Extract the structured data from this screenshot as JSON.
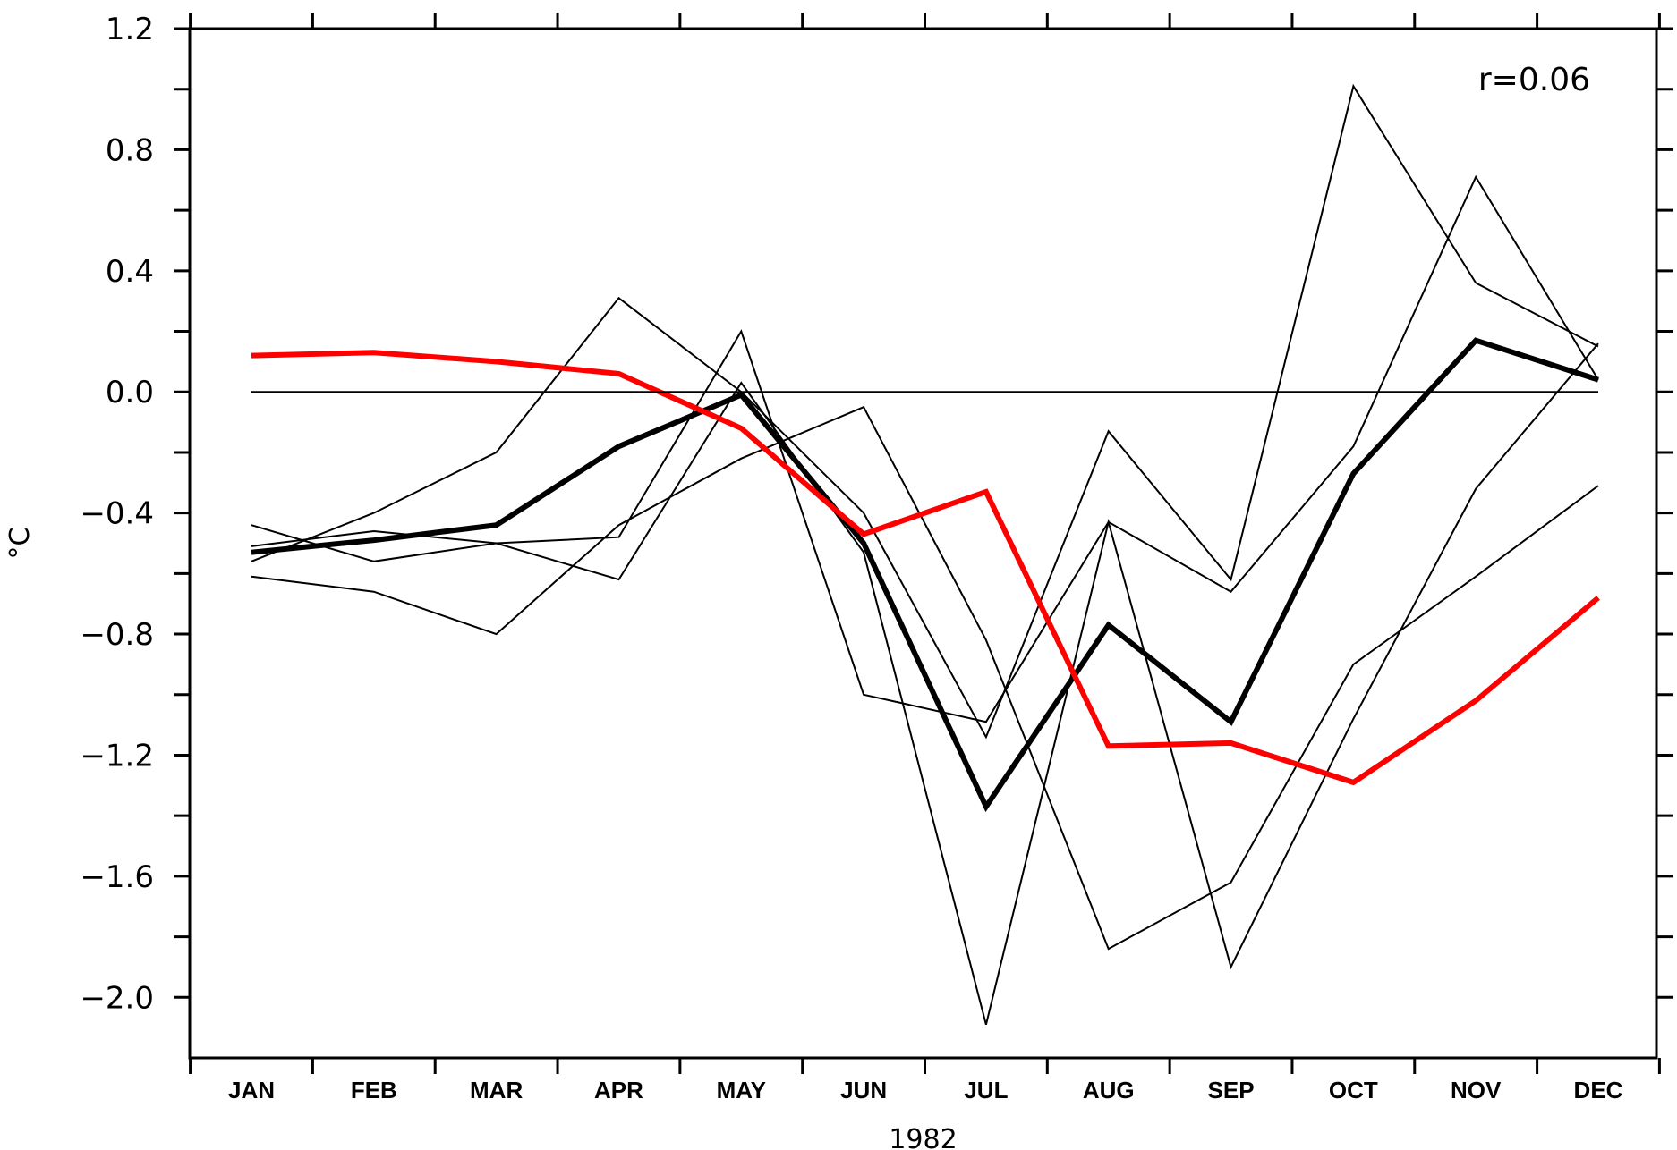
{
  "chart_data": {
    "type": "line",
    "xlabel": "1982",
    "ylabel": "°C",
    "annotation": "r=0.06",
    "ylim": [
      -2.2,
      1.2
    ],
    "y_ticks": [
      1.2,
      0.8,
      0.4,
      0.0,
      -0.4,
      -0.8,
      -1.2,
      -1.6,
      -2.0
    ],
    "y_tick_labels": [
      "1.2",
      "0.8",
      "0.4",
      "0.0",
      "−0.4",
      "−0.8",
      "−1.2",
      "−1.6",
      "−2.0"
    ],
    "categories": [
      "JAN",
      "FEB",
      "MAR",
      "APR",
      "MAY",
      "JUN",
      "JUL",
      "AUG",
      "SEP",
      "OCT",
      "NOV",
      "DEC"
    ],
    "zero_line": true,
    "grid": false,
    "series": [
      {
        "color": "#000000",
        "weight": "thin",
        "values": [
          -0.56,
          -0.4,
          -0.2,
          0.31,
          0.0,
          -0.4,
          -1.14,
          -0.13,
          -0.62,
          1.01,
          0.36,
          0.15
        ]
      },
      {
        "color": "#000000",
        "weight": "thin",
        "values": [
          -0.44,
          -0.56,
          -0.5,
          -0.48,
          0.2,
          -1.0,
          -1.09,
          -0.43,
          -0.66,
          -0.18,
          0.71,
          0.04
        ]
      },
      {
        "color": "#000000",
        "weight": "thin",
        "values": [
          -0.51,
          -0.46,
          -0.5,
          -0.62,
          0.03,
          -0.53,
          -2.09,
          -0.43,
          -1.9,
          -1.08,
          -0.32,
          0.16
        ]
      },
      {
        "color": "#000000",
        "weight": "thin",
        "values": [
          -0.61,
          -0.66,
          -0.8,
          -0.44,
          -0.22,
          -0.05,
          -0.82,
          -1.84,
          -1.62,
          -0.9,
          -0.61,
          -0.31
        ]
      },
      {
        "color": "#000000",
        "weight": "thick",
        "values": [
          -0.53,
          -0.49,
          -0.44,
          -0.18,
          -0.01,
          -0.5,
          -1.37,
          -0.77,
          -1.09,
          -0.27,
          0.17,
          0.04
        ]
      },
      {
        "color": "#ff0000",
        "weight": "thick",
        "values": [
          0.12,
          0.13,
          0.1,
          0.06,
          -0.12,
          -0.47,
          -0.33,
          -1.17,
          -1.16,
          -1.29,
          -1.02,
          -0.68
        ]
      }
    ]
  }
}
